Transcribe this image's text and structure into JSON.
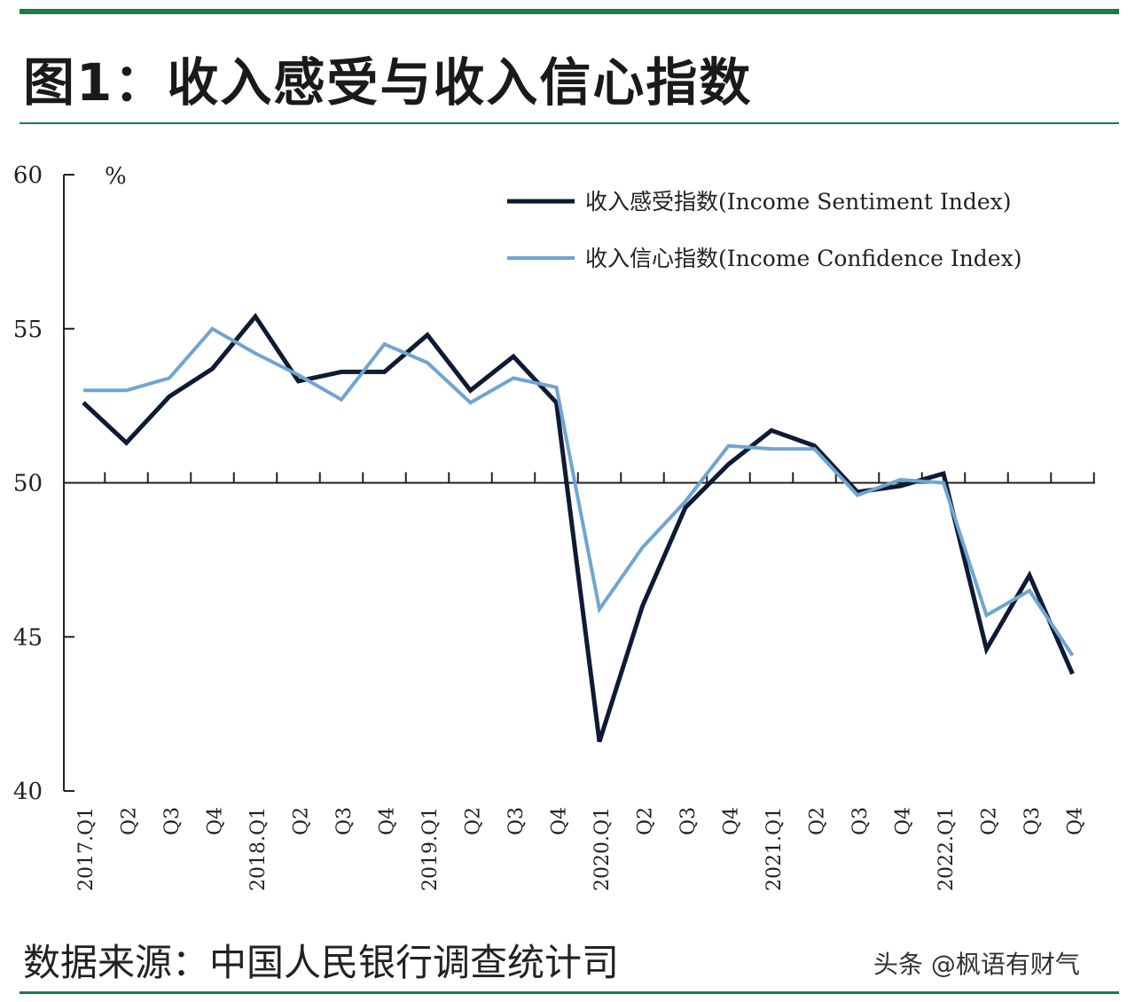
{
  "header": {
    "title": "图1：收入感受与收入信心指数"
  },
  "footer": {
    "source": "数据来源：中国人民银行调查统计司",
    "watermark": "头条 @枫语有财气"
  },
  "colors": {
    "accent_rule": "#1e7a44",
    "series_dark": "#0f1a33",
    "series_light": "#6fa5d1"
  },
  "chart_data": {
    "type": "line",
    "title": "",
    "xlabel": "",
    "ylabel": "%",
    "ylim": [
      40,
      60
    ],
    "yticks": [
      40,
      45,
      50,
      55,
      60
    ],
    "reference_line": 50,
    "grid": false,
    "legend_position": "top-right",
    "categories": [
      "2017.Q1",
      "Q2",
      "Q3",
      "Q4",
      "2018.Q1",
      "Q2",
      "Q3",
      "Q4",
      "2019.Q1",
      "Q2",
      "Q3",
      "Q4",
      "2020.Q1",
      "Q2",
      "Q3",
      "Q4",
      "2021.Q1",
      "Q2",
      "Q3",
      "Q4",
      "2022.Q1",
      "Q2",
      "Q3",
      "Q4"
    ],
    "year_labels": [
      "2017.Q1",
      "2018.Q1",
      "2019.Q1",
      "2020.Q1",
      "2021.Q1",
      "2022.Q1"
    ],
    "series": [
      {
        "name": "收入感受指数(Income Sentiment Index)",
        "color": "#0f1a33",
        "values": [
          52.6,
          51.3,
          52.8,
          53.7,
          55.4,
          53.3,
          53.6,
          53.6,
          54.8,
          53.0,
          54.1,
          52.6,
          41.6,
          46.0,
          49.2,
          50.6,
          51.7,
          51.2,
          49.7,
          49.9,
          50.3,
          44.6,
          47.0,
          43.8
        ]
      },
      {
        "name": "收入信心指数(Income Confidence Index)",
        "color": "#6fa5d1",
        "values": [
          53.0,
          53.0,
          53.4,
          55.0,
          54.2,
          53.5,
          52.7,
          54.5,
          53.9,
          52.6,
          53.4,
          53.1,
          45.9,
          47.9,
          49.4,
          51.2,
          51.1,
          51.1,
          49.6,
          50.1,
          50.0,
          45.7,
          46.5,
          44.4
        ]
      }
    ]
  }
}
